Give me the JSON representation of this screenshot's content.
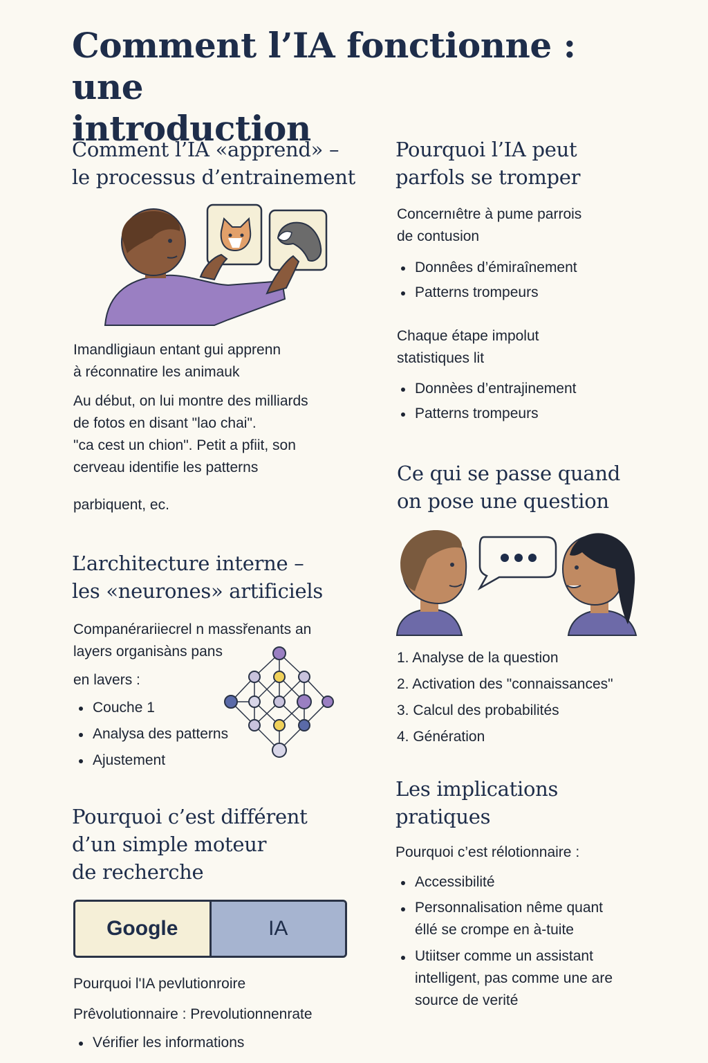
{
  "title": [
    "Comment l’IA fonctionne : une",
    "introduction"
  ],
  "sections": {
    "training": {
      "heading": [
        "Comment l’IA «apprend» –",
        "le processus d’entrainement"
      ],
      "caption": [
        "Imandligiaun entant gui apprenn",
        "à réconnatire les animauk"
      ],
      "body": [
        "Au début, on lui montre des milliards",
        "de fotos en disant \"lao chai\".",
        "\"ca cest un chion\". Petit a pfiit, son",
        "cerveau identifie les patterns"
      ],
      "tail": "parbiquent, ec."
    },
    "architecture": {
      "heading": [
        "L’architecture interne –",
        "les «neurones» artificiels"
      ],
      "intro": [
        "Companérariiecrel n massřenants an",
        "layers organisàns pans"
      ],
      "lead": "en lavers :",
      "bullets": [
        "Couche 1",
        "Analysa des patterns",
        "Ajustement"
      ]
    },
    "different": {
      "heading": [
        "Pourquoi c’est différent",
        "d’un simple moteur",
        "de recherche"
      ],
      "compare_left": "Google",
      "compare_right": "IA",
      "line1": "Pourquoi l'IA pevlutionroire",
      "line2": "Prêvolutionnaire : Prevolutionnenrate",
      "bullets": [
        "Vérifier les informations"
      ]
    },
    "mistakes": {
      "heading": [
        "Pourquoi l’IA peut",
        "parfols se tromper"
      ],
      "intro": [
        "Concernıêtre à pume parrois",
        "de contusion"
      ],
      "bullets1": [
        "Donnêes d’émiraînement",
        "Patterns trompeurs"
      ],
      "mid": [
        "Chaque étape impolut",
        "statistiques lit"
      ],
      "bullets2": [
        "Donnèes d’entrajinement",
        "Patterns trompeurs"
      ]
    },
    "question": {
      "heading": [
        "Ce qui se passe quand",
        "on pose une question"
      ],
      "steps": [
        "1. Analyse de la question",
        "2. Activation des \"connaissances\"",
        "3. Calcul des probabilités",
        "4. Génération"
      ]
    },
    "implications": {
      "heading": [
        "Les implications",
        "pratiques"
      ],
      "lead": "Pourquoi c’est rélotionnaire :",
      "bullets": [
        [
          "Accessibilité"
        ],
        [
          "Personnalisation nême quant",
          "éllé se crompe  en à-tuite"
        ],
        [
          "Utiitser comme un assistant",
          "intelligent, pas comme une are",
          "source de verité"
        ]
      ]
    }
  },
  "colors": {
    "heading": "#1e2d4a",
    "background": "#fbf9f2",
    "purple": "#9a7fc2",
    "compare_left": "#f5efd7",
    "compare_right": "#a6b4d0"
  },
  "icons": [
    "child-learning-illustration",
    "cat-card-icon",
    "dog-card-icon",
    "neural-network-icon",
    "conversation-illustration",
    "speech-bubble-icon"
  ]
}
